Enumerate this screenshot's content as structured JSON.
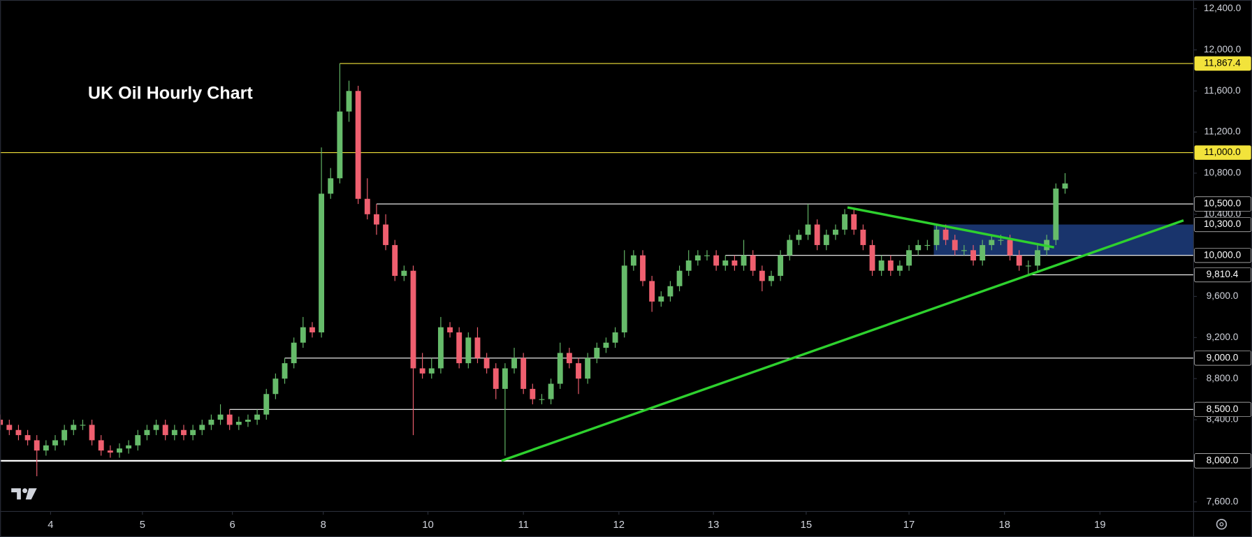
{
  "chart_data": {
    "type": "candlestick",
    "title": "UK Oil Hourly Chart",
    "up_color": "#66bb6a",
    "down_color": "#ef5f6f",
    "x": [
      0,
      1,
      2,
      3,
      4,
      5,
      6,
      7,
      8,
      9,
      10,
      11,
      12,
      13,
      14,
      15,
      16,
      17,
      18,
      19,
      20,
      21,
      22,
      23,
      24,
      25,
      26,
      27,
      28,
      29,
      30,
      31,
      32,
      33,
      34,
      35,
      36,
      37,
      38,
      39,
      40,
      41,
      42,
      43,
      44,
      45,
      46,
      47,
      48,
      49,
      50,
      51,
      52,
      53,
      54,
      55,
      56,
      57,
      58,
      59,
      60,
      61,
      62,
      63,
      64,
      65,
      66,
      67,
      68,
      69,
      70,
      71,
      72,
      73,
      74,
      75,
      76,
      77,
      78,
      79,
      80,
      81,
      82,
      83,
      84,
      85,
      86,
      87,
      88,
      89,
      90,
      91,
      92,
      93,
      94,
      95,
      96,
      97,
      98,
      99,
      100,
      101,
      102,
      103,
      104,
      105,
      106,
      107,
      108,
      109,
      110,
      111,
      112,
      113,
      114,
      115,
      116
    ],
    "open": [
      8400,
      8350,
      8300,
      8250,
      8200,
      8100,
      8150,
      8200,
      8300,
      8350,
      8350,
      8200,
      8100,
      8080,
      8120,
      8150,
      8250,
      8300,
      8350,
      8250,
      8300,
      8250,
      8300,
      8350,
      8400,
      8450,
      8350,
      8380,
      8400,
      8450,
      8650,
      8800,
      8950,
      9150,
      9300,
      9250,
      10600,
      10750,
      11400,
      11600,
      10550,
      10400,
      10300,
      10100,
      9800,
      9850,
      8900,
      8850,
      8900,
      9300,
      9250,
      8950,
      9200,
      9000,
      8900,
      8700,
      8900,
      9000,
      8700,
      8600,
      8600,
      8750,
      9050,
      8950,
      8800,
      9000,
      9100,
      9150,
      9250,
      9900,
      10000,
      9750,
      9550,
      9600,
      9700,
      9850,
      9950,
      10000,
      10000,
      9900,
      9950,
      9900,
      10000,
      9850,
      9750,
      9800,
      10000,
      10150,
      10200,
      10300,
      10100,
      10200,
      10250,
      10400,
      10250,
      10100,
      9850,
      9950,
      9850,
      9900,
      10050,
      10100,
      10100,
      10250,
      10150,
      10050,
      10050,
      9950,
      10100,
      10150,
      10150,
      10000,
      9900,
      9900,
      10050,
      10150,
      10650
    ],
    "high": [
      8450,
      8400,
      8350,
      8300,
      8250,
      8200,
      8250,
      8350,
      8400,
      8400,
      8400,
      8250,
      8150,
      8170,
      8200,
      8300,
      8350,
      8400,
      8400,
      8350,
      8350,
      8350,
      8400,
      8450,
      8550,
      8500,
      8430,
      8450,
      8500,
      8700,
      8850,
      9000,
      9200,
      9400,
      9350,
      11050,
      10850,
      11867.4,
      11700,
      11650,
      10750,
      10500,
      10400,
      10150,
      9900,
      9900,
      9050,
      9000,
      9400,
      9350,
      9300,
      9250,
      9300,
      9050,
      8950,
      8950,
      9100,
      9050,
      8750,
      8650,
      8800,
      9150,
      9100,
      9000,
      9050,
      9150,
      9200,
      9300,
      10050,
      10050,
      10050,
      9800,
      9650,
      9750,
      9900,
      10050,
      10050,
      10050,
      10050,
      10000,
      10000,
      10150,
      10050,
      9900,
      9850,
      10050,
      10200,
      10250,
      10500,
      10350,
      10250,
      10300,
      10450,
      10450,
      10300,
      10150,
      10000,
      10000,
      9950,
      10100,
      10150,
      10150,
      10300,
      10300,
      10200,
      10100,
      10100,
      10150,
      10200,
      10200,
      10200,
      10050,
      9950,
      10100,
      10200,
      10700,
      10800
    ],
    "low": [
      8300,
      8250,
      8200,
      8150,
      7850,
      8050,
      8100,
      8150,
      8250,
      8300,
      8150,
      8050,
      8030,
      8030,
      8070,
      8100,
      8200,
      8250,
      8200,
      8200,
      8200,
      8200,
      8250,
      8300,
      8350,
      8300,
      8300,
      8330,
      8350,
      8400,
      8600,
      8750,
      8900,
      9100,
      9200,
      9200,
      10550,
      10700,
      11300,
      10500,
      10350,
      10200,
      10050,
      9750,
      9750,
      8250,
      8800,
      8800,
      8850,
      9200,
      8900,
      8900,
      8950,
      8850,
      8600,
      8050,
      8850,
      8650,
      8550,
      8550,
      8550,
      8700,
      8900,
      8650,
      8750,
      8950,
      9050,
      9100,
      9200,
      9850,
      9700,
      9450,
      9500,
      9550,
      9650,
      9800,
      9900,
      9950,
      9850,
      9850,
      9850,
      9850,
      9800,
      9650,
      9700,
      9750,
      9950,
      10100,
      10150,
      10050,
      10050,
      10150,
      10200,
      10200,
      10050,
      9800,
      9800,
      9800,
      9800,
      9850,
      10000,
      10050,
      10050,
      10100,
      10000,
      10000,
      9900,
      9900,
      10050,
      10100,
      9950,
      9850,
      9810.4,
      9850,
      10000,
      10100,
      10600
    ],
    "close": [
      8350,
      8300,
      8250,
      8200,
      8100,
      8150,
      8200,
      8300,
      8350,
      8350,
      8200,
      8100,
      8080,
      8120,
      8150,
      8250,
      8300,
      8350,
      8250,
      8300,
      8250,
      8300,
      8350,
      8400,
      8450,
      8350,
      8380,
      8400,
      8450,
      8650,
      8800,
      8950,
      9150,
      9300,
      9250,
      10600,
      10750,
      11400,
      11600,
      10550,
      10400,
      10300,
      10100,
      9800,
      9850,
      8900,
      8850,
      8900,
      9300,
      9250,
      8950,
      9200,
      9000,
      8900,
      8700,
      8900,
      9000,
      8700,
      8600,
      8600,
      8750,
      9050,
      8950,
      8800,
      9000,
      9100,
      9150,
      9250,
      9900,
      10000,
      9750,
      9550,
      9600,
      9700,
      9850,
      9950,
      10000,
      10000,
      9900,
      9950,
      9900,
      10000,
      9850,
      9750,
      9800,
      10000,
      10150,
      10200,
      10300,
      10100,
      10200,
      10250,
      10400,
      10250,
      10100,
      9850,
      9950,
      9850,
      9900,
      10050,
      10100,
      10100,
      10250,
      10150,
      10050,
      10050,
      9950,
      10100,
      10150,
      10150,
      10000,
      9900,
      9900,
      10050,
      10150,
      10650,
      10700
    ],
    "xlim": [
      0,
      130
    ],
    "xticks": [
      {
        "value": 5.5,
        "label": "4"
      },
      {
        "value": 15.5,
        "label": "5"
      },
      {
        "value": 25.3,
        "label": "6"
      },
      {
        "value": 35.2,
        "label": "8"
      },
      {
        "value": 46.6,
        "label": "10"
      },
      {
        "value": 57,
        "label": "11"
      },
      {
        "value": 67.4,
        "label": "12"
      },
      {
        "value": 77.7,
        "label": "13"
      },
      {
        "value": 87.8,
        "label": "15"
      },
      {
        "value": 99,
        "label": "17"
      },
      {
        "value": 109.4,
        "label": "18"
      },
      {
        "value": 119.8,
        "label": "19"
      }
    ],
    "ylim": [
      7600,
      12400
    ],
    "yticks": [
      {
        "value": 7600,
        "label": "7,600.0"
      },
      {
        "value": 8000,
        "label": "8,000.0"
      },
      {
        "value": 8400,
        "label": "8,400.0"
      },
      {
        "value": 8800,
        "label": "8,800.0"
      },
      {
        "value": 9200,
        "label": "9,200.0"
      },
      {
        "value": 9600,
        "label": "9,600.0"
      },
      {
        "value": 10000,
        "label": "10,000.0"
      },
      {
        "value": 10400,
        "label": "10,400.0"
      },
      {
        "value": 10800,
        "label": "10,800.0"
      },
      {
        "value": 11200,
        "label": "11,200.0"
      },
      {
        "value": 11600,
        "label": "11,600.0"
      },
      {
        "value": 12000,
        "label": "12,000.0"
      },
      {
        "value": 12400,
        "label": "12,400.0"
      }
    ],
    "levels": [
      {
        "value": 11867.4,
        "label": "11,867.4",
        "color": "#f2e33b",
        "line": true
      },
      {
        "value": 11000,
        "label": "11,000.0",
        "color": "#f2e33b",
        "line": true
      },
      {
        "value": 10500,
        "label": "10,500.0",
        "color": "#ffffff",
        "line": true
      },
      {
        "value": 10300,
        "label": "10,300.0",
        "color": "#ffffff",
        "line": false
      },
      {
        "value": 10000,
        "label": "10,000.0",
        "color": "#ffffff",
        "line": true
      },
      {
        "value": 9810.4,
        "label": "9,810.4",
        "color": "#ffffff",
        "line": true
      },
      {
        "value": 9000,
        "label": "9,000.0",
        "color": "#ffffff",
        "line": true
      },
      {
        "value": 8500,
        "label": "8,500.0",
        "color": "#ffffff",
        "line": true
      },
      {
        "value": 8000,
        "label": "8,000.0",
        "color": "#ffffff",
        "line": true
      }
    ],
    "zone": {
      "x": 101.7,
      "from": 10000,
      "to": 10300,
      "color": "#1c3a78"
    },
    "trendlines": [
      {
        "color": "#2ed12e",
        "points": [
          {
            "x": 54.6,
            "y": 8000
          },
          {
            "x": 128.9,
            "y": 10340
          }
        ]
      },
      {
        "color": "#2ed12e",
        "points": [
          {
            "x": 92.3,
            "y": 10466
          },
          {
            "x": 114.8,
            "y": 10078
          }
        ]
      }
    ]
  }
}
